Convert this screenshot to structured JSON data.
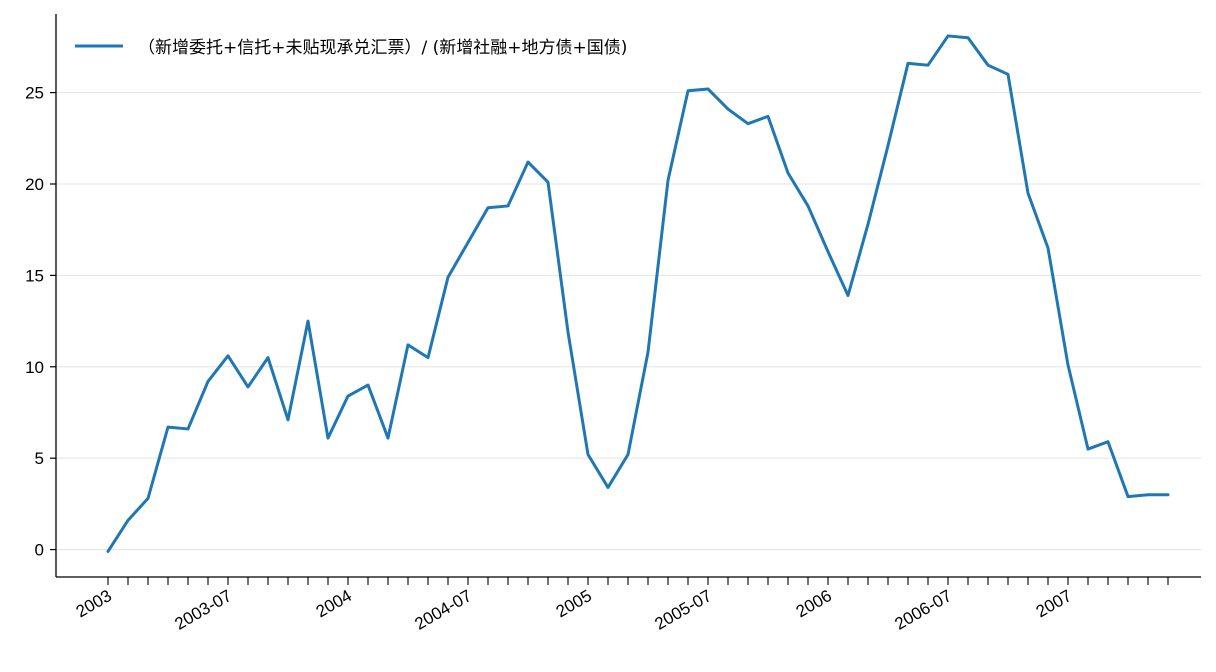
{
  "chart_data": {
    "type": "line",
    "title": "",
    "xlabel": "",
    "ylabel": "",
    "ylim": [
      -1.5,
      29.3
    ],
    "yticks": [
      0,
      5,
      10,
      15,
      20,
      25
    ],
    "grid": "horizontal",
    "legend_position": "top-left",
    "x_period": "monthly",
    "x_start": "2003-01",
    "x_tick_labels": [
      "2003",
      "2003-07",
      "2004",
      "2004-07",
      "2005",
      "2005-07",
      "2006",
      "2006-07",
      "2007"
    ],
    "x_tick_label_months": [
      "2003-01",
      "2003-07",
      "2004-01",
      "2004-07",
      "2005-01",
      "2005-07",
      "2006-01",
      "2006-07",
      "2007-01"
    ],
    "x": [
      "2003-01",
      "2003-02",
      "2003-03",
      "2003-04",
      "2003-05",
      "2003-06",
      "2003-07",
      "2003-08",
      "2003-09",
      "2003-10",
      "2003-11",
      "2003-12",
      "2004-01",
      "2004-02",
      "2004-03",
      "2004-04",
      "2004-05",
      "2004-06",
      "2004-07",
      "2004-08",
      "2004-09",
      "2004-10",
      "2004-11",
      "2004-12",
      "2005-01",
      "2005-02",
      "2005-03",
      "2005-04",
      "2005-05",
      "2005-06",
      "2005-07",
      "2005-08",
      "2005-09",
      "2005-10",
      "2005-11",
      "2005-12",
      "2006-01",
      "2006-02",
      "2006-03",
      "2006-04",
      "2006-05",
      "2006-06",
      "2006-07",
      "2006-08",
      "2006-09",
      "2006-10",
      "2006-11",
      "2006-12",
      "2007-01",
      "2007-02",
      "2007-03",
      "2007-04",
      "2007-05",
      "2007-06"
    ],
    "series": [
      {
        "name": "（新增委托+信托+未贴现承兑汇票）/ (新增社融+地方债+国债)",
        "color": "#1f77b4",
        "values": [
          -0.1,
          1.6,
          2.8,
          6.7,
          6.6,
          9.2,
          10.6,
          8.9,
          10.5,
          7.1,
          12.5,
          6.1,
          8.4,
          9.0,
          6.1,
          11.2,
          10.5,
          14.9,
          16.8,
          18.7,
          18.8,
          21.2,
          20.1,
          11.9,
          5.2,
          3.4,
          5.2,
          10.8,
          20.2,
          25.1,
          25.2,
          24.1,
          23.3,
          23.7,
          20.6,
          18.8,
          16.3,
          13.9,
          17.8,
          22.1,
          26.6,
          26.5,
          28.1,
          28.0,
          26.5,
          26.0,
          19.5,
          16.5,
          10.1,
          5.5,
          5.9,
          2.9,
          3.0,
          3.0
        ]
      }
    ]
  }
}
